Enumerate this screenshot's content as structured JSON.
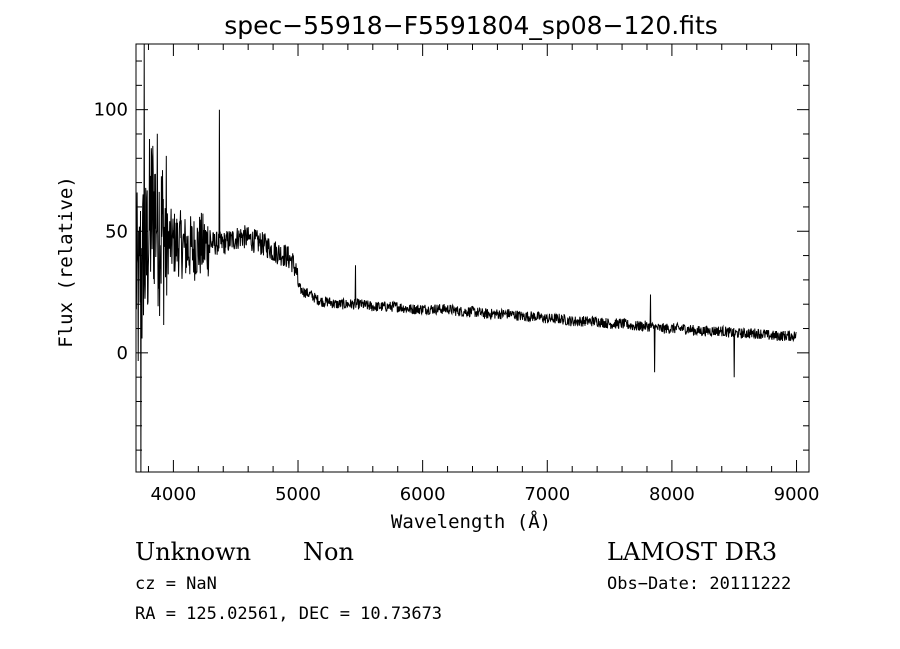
{
  "chart_data": {
    "type": "line",
    "title": "spec−55918−F5591804_sp08−120.fits",
    "xlabel": "Wavelength (Å)",
    "ylabel": "Flux (relative)",
    "xlim": [
      3700,
      9100
    ],
    "ylim": [
      -49,
      127
    ],
    "x_ticks": [
      4000,
      5000,
      6000,
      7000,
      8000,
      9000
    ],
    "y_ticks": [
      0,
      50,
      100
    ],
    "grid": false,
    "series": [
      {
        "x": [
          3700,
          3720,
          3740,
          3750,
          3760,
          3780,
          3800,
          3820,
          3840,
          3860,
          3880,
          3900,
          3920,
          3950,
          4000,
          4050,
          4100,
          4150,
          4200,
          4250,
          4300,
          4350,
          4400,
          4450,
          4500,
          4550,
          4600,
          4650,
          4700,
          4750,
          4800,
          4850,
          4900,
          4950,
          4990,
          5000,
          5010,
          5020,
          5050,
          5100,
          5150,
          5200,
          5250,
          5300,
          5400,
          5500,
          5600,
          5700,
          5800,
          5900,
          6000,
          6100,
          6200,
          6300,
          6400,
          6500,
          6600,
          6700,
          6800,
          6900,
          7000,
          7100,
          7200,
          7300,
          7400,
          7500,
          7600,
          7700,
          7800,
          7900,
          8000,
          8100,
          8200,
          8300,
          8400,
          8500,
          8600,
          8700,
          8800,
          8900,
          9000
        ],
        "values": [
          35,
          20,
          40,
          25,
          45,
          35,
          50,
          55,
          60,
          58,
          55,
          50,
          48,
          46,
          45,
          45,
          43,
          43,
          44,
          44,
          45,
          45,
          45,
          46,
          47,
          48,
          47,
          46,
          45,
          44,
          42,
          41,
          40,
          38,
          33,
          28,
          27,
          26,
          25,
          24,
          22,
          21,
          21,
          20,
          20,
          20,
          19,
          19,
          19,
          18,
          18,
          18,
          18,
          17,
          17,
          16,
          16,
          16,
          15,
          15,
          14,
          14,
          13,
          13,
          13,
          12,
          12,
          11,
          11,
          10,
          10,
          10,
          9,
          9,
          9,
          8,
          8,
          8,
          7,
          7,
          7
        ]
      }
    ]
  },
  "footer": {
    "class_label": "Unknown",
    "subclass_label": "Non",
    "cz": "cz = NaN",
    "coords": "RA = 125.02561, DEC =  10.73673",
    "survey": "LAMOST DR3",
    "obs_date": "Obs−Date: 20111222"
  }
}
